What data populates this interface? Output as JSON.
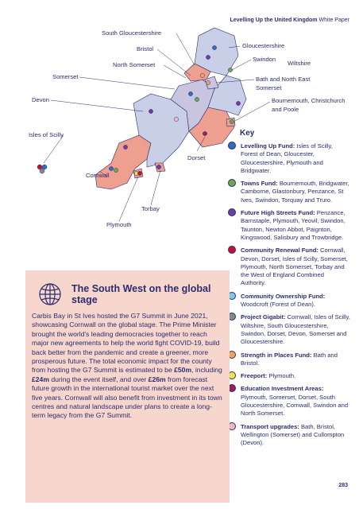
{
  "header": {
    "title": "Levelling Up the United Kingdom",
    "subtitle": "White Paper"
  },
  "map": {
    "labels": [
      "South Gloucestershire",
      "Bristol",
      "North Somerset",
      "Somerset",
      "Devon",
      "Isles of Scilly",
      "Cornwall",
      "Torbay",
      "Plymouth",
      "Dorset",
      "Gloucestershire",
      "Swindon",
      "Wiltshire",
      "Bath and North East Somerset",
      "Bournemouth, Christchurch and Poole"
    ]
  },
  "key": {
    "title": "Key",
    "items": [
      {
        "name": "Levelling Up Fund:",
        "text": "Isles of Scilly, Forest of Dean, Gloucester, Gloucestershire, Plymouth and Bridgwater.",
        "color": "#2f6fb7"
      },
      {
        "name": "Towns Fund:",
        "text": "Bournemouth, Bridgwater, Camborne, Glastonbury, Penzance, St Ives, Swindon, Torquay and Truro.",
        "color": "#6aa84f"
      },
      {
        "name": "Future High Streets Fund:",
        "text": "Penzance, Barnstaple, Plymouth, Yeovil, Swindon, Taunton, Newton Abbot, Paignton, Kingswood, Salisbury and Trowbridge.",
        "color": "#6b3fa0"
      },
      {
        "name": "Community Renewal Fund:",
        "text": "Cornwall, Devon, Dorset, Isles of Scilly, Somerset, Plymouth, North Somerset, Torbay and the West of England Combined Authority.",
        "color": "#c8102e"
      },
      {
        "name": "Community Ownership Fund:",
        "text": "Woodcroft (Forest of Dean).",
        "color": "#7fc8e8"
      },
      {
        "name": "Project Gigabit:",
        "text": "Cornwall, Isles of Scilly, Wiltshire, South Gloucestershire, Swindon, Dorset, Devon, Somerset and Gloucestershire.",
        "color": "#7f8c8d"
      },
      {
        "name": "Strength in Places Fund:",
        "text": "Bath and Bristol.",
        "color": "#f0a35e"
      },
      {
        "name": "Freeport:",
        "text": "Plymouth.",
        "color": "#f2e14c"
      },
      {
        "name": "Education Investment Areas:",
        "text": "Plymouth, Somerset, Dorset, South Gloucestershire, Cornwall, Swindon and North Somerset.",
        "color": "#9c1f5c"
      },
      {
        "name": "Transport upgrades:",
        "text": "Bath, Bristol, Wellington (Somerset) and Cullompton (Devon).",
        "color": "#f4b6c2"
      }
    ]
  },
  "box": {
    "title": "The South West on the global stage",
    "body": [
      "Carbis Bay in St Ives hosted the G7 Summit in June 2021, showcasing Cornwall on the global stage. The Prime Minister brought the world's leading democracies together to reach major new agreements to help the world fight COVID-19, build back better from the pandemic and create a greener, more prosperous future. The total economic impact for the county from hosting the G7 Summit is estimated to be ",
      "£50m",
      ", including ",
      "£24m",
      " during the event itself, and over ",
      "£26m",
      " from forecast future growth in the international tourist market over the next five years. Cornwall will also benefit from investment in its town centres and natural landscape under plans to create a long-term legacy from the G7 Summit."
    ]
  },
  "page_number": "283"
}
